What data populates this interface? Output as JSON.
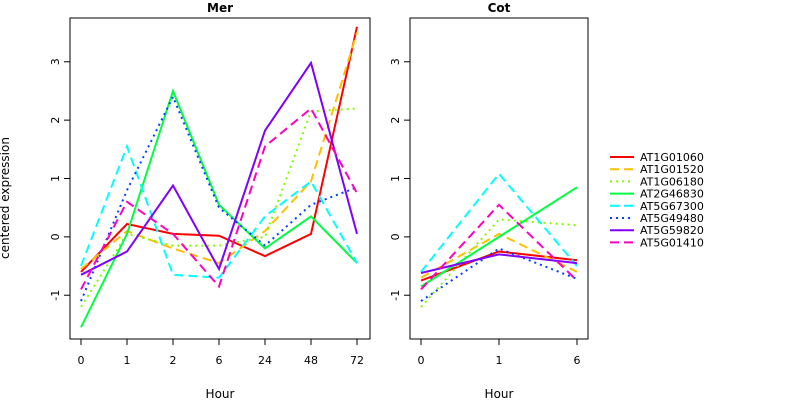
{
  "figure": {
    "ylabel": "centered expression"
  },
  "legend": {
    "placement": "right",
    "entries": [
      {
        "name": "AT1G01060",
        "color": "#ff0000",
        "dash": "solid"
      },
      {
        "name": "AT1G01520",
        "color": "#ffbf00",
        "dash": "dashed"
      },
      {
        "name": "AT1G06180",
        "color": "#80ff00",
        "dash": "dotted"
      },
      {
        "name": "AT2G46830",
        "color": "#00ff40",
        "dash": "solid"
      },
      {
        "name": "AT5G67300",
        "color": "#00ffff",
        "dash": "dashed"
      },
      {
        "name": "AT5G49480",
        "color": "#0040ff",
        "dash": "dotted"
      },
      {
        "name": "AT5G59820",
        "color": "#8000ff",
        "dash": "solid"
      },
      {
        "name": "AT5G01410",
        "color": "#ff00bf",
        "dash": "dashed"
      }
    ]
  },
  "chart_data": [
    {
      "type": "line",
      "title": "Mer",
      "xlabel": "Hour",
      "ylabel": "centered expression",
      "categories": [
        "0",
        "1",
        "2",
        "6",
        "24",
        "48",
        "72"
      ],
      "ylim": [
        -1.75,
        3.75
      ],
      "yticks": [
        -1,
        0,
        1,
        2,
        3
      ],
      "grid": false,
      "series": [
        {
          "name": "AT1G01060",
          "values": [
            -0.6,
            0.22,
            0.05,
            0.02,
            -0.33,
            0.05,
            3.6
          ]
        },
        {
          "name": "AT1G01520",
          "values": [
            -0.55,
            0.1,
            -0.2,
            -0.45,
            0.1,
            0.95,
            3.5
          ]
        },
        {
          "name": "AT1G06180",
          "values": [
            -1.2,
            0.05,
            -0.15,
            -0.15,
            0.0,
            2.15,
            2.2
          ]
        },
        {
          "name": "AT2G46830",
          "values": [
            -1.55,
            0.05,
            2.5,
            0.55,
            -0.2,
            0.35,
            -0.45
          ]
        },
        {
          "name": "AT5G67300",
          "values": [
            -0.5,
            1.55,
            -0.65,
            -0.7,
            0.35,
            0.95,
            -0.45
          ]
        },
        {
          "name": "AT5G49480",
          "values": [
            -1.1,
            0.8,
            2.4,
            0.5,
            -0.15,
            0.55,
            0.85
          ]
        },
        {
          "name": "AT5G59820",
          "values": [
            -0.65,
            -0.25,
            0.88,
            -0.55,
            1.82,
            2.98,
            0.05
          ]
        },
        {
          "name": "AT5G01410",
          "values": [
            -0.9,
            0.6,
            0.05,
            -0.85,
            1.55,
            2.2,
            0.75
          ]
        }
      ]
    },
    {
      "type": "line",
      "title": "Cot",
      "xlabel": "Hour",
      "categories": [
        "0",
        "1",
        "6"
      ],
      "ylim": [
        -1.75,
        3.75
      ],
      "yticks": [
        -1,
        0,
        1,
        2,
        3
      ],
      "grid": false,
      "series": [
        {
          "name": "AT1G01060",
          "values": [
            -0.75,
            -0.25,
            -0.4
          ]
        },
        {
          "name": "AT1G01520",
          "values": [
            -0.7,
            0.05,
            -0.6
          ]
        },
        {
          "name": "AT1G06180",
          "values": [
            -1.2,
            0.3,
            0.2
          ]
        },
        {
          "name": "AT2G46830",
          "values": [
            -0.85,
            0.0,
            0.85
          ]
        },
        {
          "name": "AT5G67300",
          "values": [
            -0.6,
            1.08,
            -0.5
          ]
        },
        {
          "name": "AT5G49480",
          "values": [
            -1.1,
            -0.2,
            -0.72
          ]
        },
        {
          "name": "AT5G59820",
          "values": [
            -0.62,
            -0.3,
            -0.45
          ]
        },
        {
          "name": "AT5G01410",
          "values": [
            -0.9,
            0.55,
            -0.75
          ]
        }
      ]
    }
  ]
}
